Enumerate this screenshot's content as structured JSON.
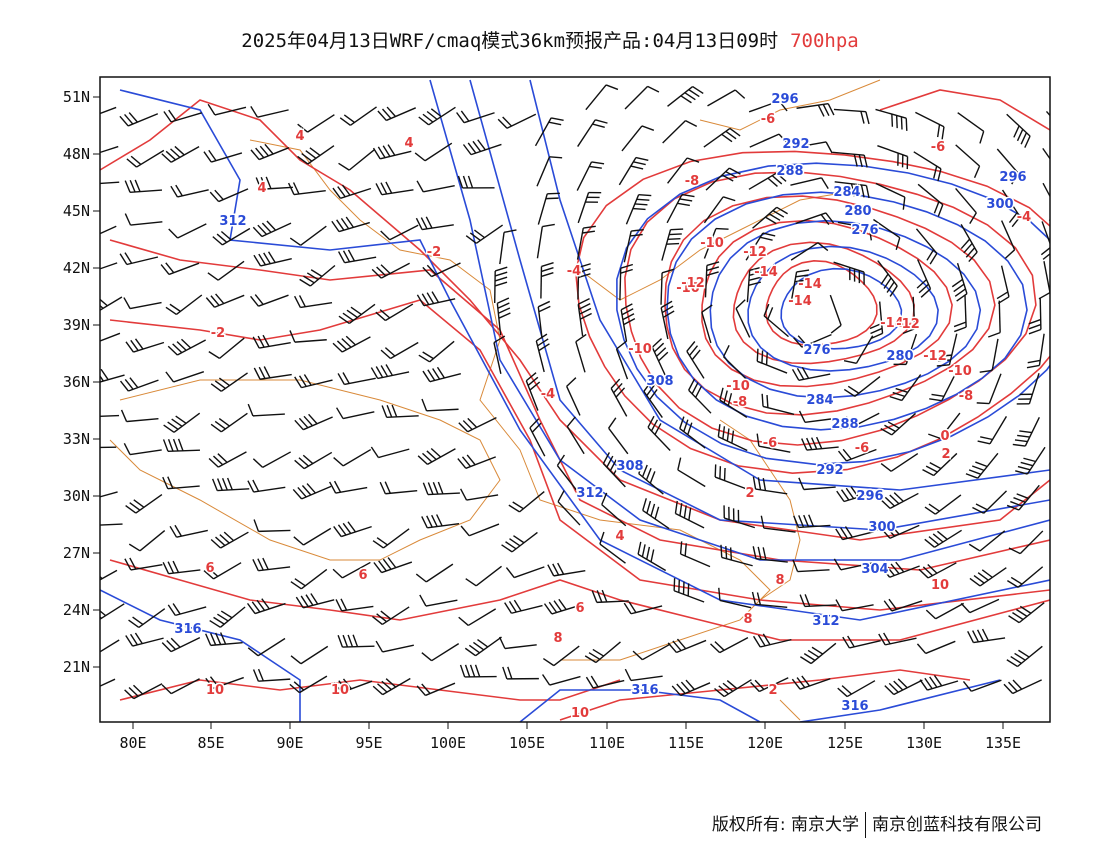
{
  "title": {
    "main": "2025年04月13日WRF/cmaq模式36km预报产品:04月13日09时",
    "level": "700hpa"
  },
  "colors": {
    "height_contour": "#2a4bd7",
    "temperature_contour": "#e23b3b",
    "coastline_border": "#d98a3a",
    "wind_barb": "#111111",
    "level_text": "#e23b3b"
  },
  "axes": {
    "lon_ticks": [
      "80E",
      "85E",
      "90E",
      "95E",
      "100E",
      "105E",
      "110E",
      "115E",
      "120E",
      "125E",
      "130E",
      "135E"
    ],
    "lat_ticks": [
      "51N",
      "48N",
      "45N",
      "42N",
      "39N",
      "36N",
      "33N",
      "30N",
      "27N",
      "24N",
      "21N"
    ]
  },
  "height_labels": [
    "296",
    "292",
    "288",
    "284",
    "280",
    "276",
    "276",
    "280",
    "284",
    "288",
    "292",
    "296",
    "300",
    "304",
    "308",
    "308",
    "312",
    "312",
    "312",
    "316",
    "316",
    "316",
    "296",
    "300"
  ],
  "temperature_labels": [
    "-6",
    "-6",
    "-8",
    "-10",
    "-12",
    "-14",
    "-14",
    "-14",
    "-10",
    "-12",
    "-10",
    "-8",
    "-6",
    "-4",
    "-4",
    "-2",
    "0",
    "2",
    "2",
    "4",
    "4",
    "4",
    "4",
    "6",
    "6",
    "6",
    "8",
    "8",
    "8",
    "10",
    "10",
    "10",
    "10",
    "2",
    "-2",
    "-4",
    "-6",
    "-8",
    "-10",
    "-12",
    "-14",
    "-12",
    "-10"
  ],
  "footer": {
    "left": "版权所有: 南京大学",
    "right": "南京创蓝科技有限公司"
  }
}
